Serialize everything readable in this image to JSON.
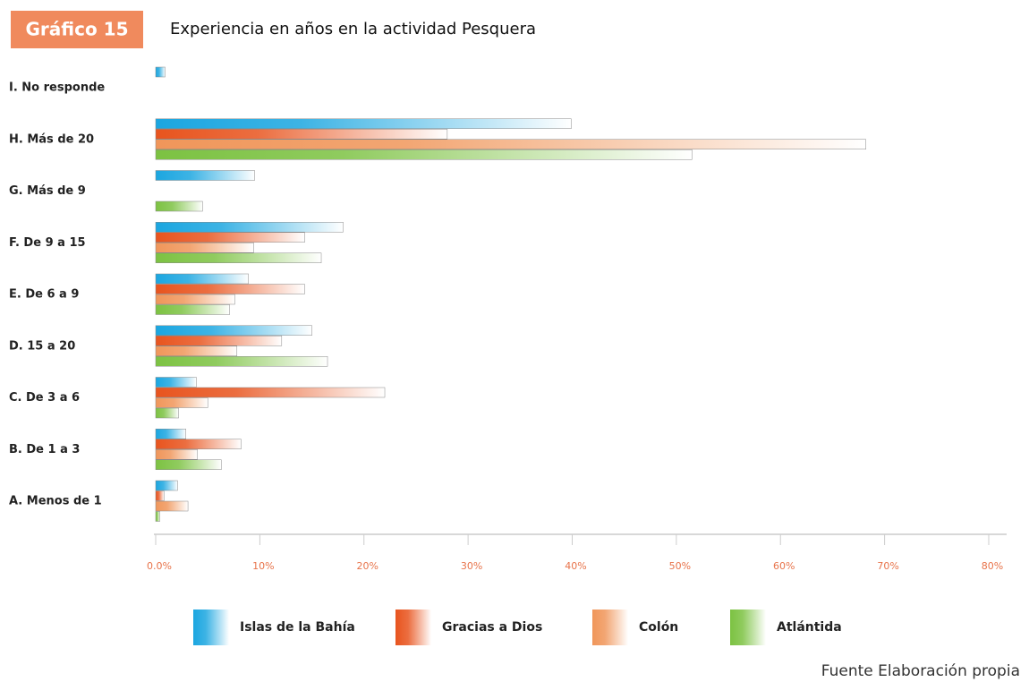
{
  "chart_data": {
    "type": "hbar",
    "badge": "Gráfico 15",
    "title": "Experiencia en años en la actividad Pesquera",
    "source": "Fuente Elaboración propia",
    "categories": [
      "I. No responde",
      "H. Más de 20",
      "G. Más de 9",
      "F. De 9 a 15",
      "E. De 6 a 9",
      "D. 15 a 20",
      "C. De 3 a 6",
      "B. De 1 a 3",
      "A. Menos de 1"
    ],
    "series": [
      {
        "name": "Islas de la Bahía",
        "color": "#1ba6e0",
        "values": [
          0.9,
          39.9,
          9.5,
          18,
          8.9,
          15,
          3.9,
          2.9,
          2.1
        ]
      },
      {
        "name": "Gracias a Dios",
        "color": "#e8541e",
        "values": [
          0,
          28,
          0,
          14.3,
          14.3,
          12.1,
          22,
          8.2,
          0.8
        ]
      },
      {
        "name": "Colón",
        "color": "#f0965a",
        "values": [
          0,
          68.2,
          0,
          9.4,
          7.6,
          7.8,
          5,
          4,
          3.1
        ]
      },
      {
        "name": "Atlántida",
        "color": "#7cc242",
        "values": [
          0,
          51.5,
          4.5,
          15.9,
          7.1,
          16.5,
          2.2,
          6.3,
          0.4
        ]
      }
    ],
    "xlim": [
      0,
      80
    ],
    "xticks": [
      {
        "value": 0,
        "label": "0.0%"
      },
      {
        "value": 10,
        "label": "10%"
      },
      {
        "value": 20,
        "label": "20%"
      },
      {
        "value": 30,
        "label": "30%"
      },
      {
        "value": 40,
        "label": "40%"
      },
      {
        "value": 50,
        "label": "50%"
      },
      {
        "value": 60,
        "label": "60%"
      },
      {
        "value": 70,
        "label": "70%"
      },
      {
        "value": 80,
        "label": "80%"
      }
    ]
  }
}
